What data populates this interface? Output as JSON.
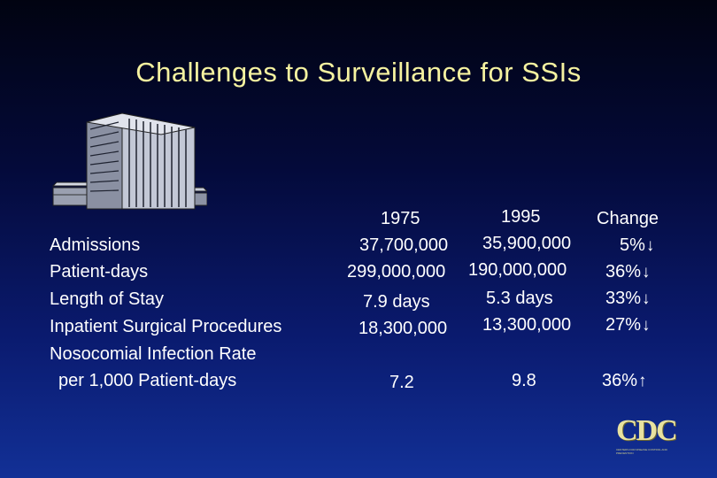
{
  "title": "Challenges to Surveillance for SSIs",
  "headers": {
    "y1975": "1975",
    "y1995": "1995",
    "change": "Change"
  },
  "rows": [
    {
      "label": "Admissions",
      "v1975": "37,700,000",
      "v1995": "35,900,000",
      "change": "5%",
      "dir": "↓"
    },
    {
      "label": "Patient-days",
      "v1975": "299,000,000",
      "v1995": "190,000,000",
      "change": "36%",
      "dir": "↓"
    },
    {
      "label": "Length of Stay",
      "v1975": "7.9 days",
      "v1995": "5.3 days",
      "change": "33%",
      "dir": "↓"
    },
    {
      "label": "Inpatient Surgical Procedures",
      "v1975": "18,300,000",
      "v1995": "13,300,000",
      "change": "27%",
      "dir": "↓"
    },
    {
      "label": "Nosocomial Infection Rate",
      "label2": "per 1,000 Patient-days",
      "v1975": "7.2",
      "v1995": "9.8",
      "change": "36%",
      "dir": "↑"
    }
  ],
  "logo": {
    "text": "CDC",
    "subtext": "CENTERS FOR DISEASE CONTROL AND PREVENTION"
  },
  "icons": {
    "building": "hospital-building-icon"
  }
}
